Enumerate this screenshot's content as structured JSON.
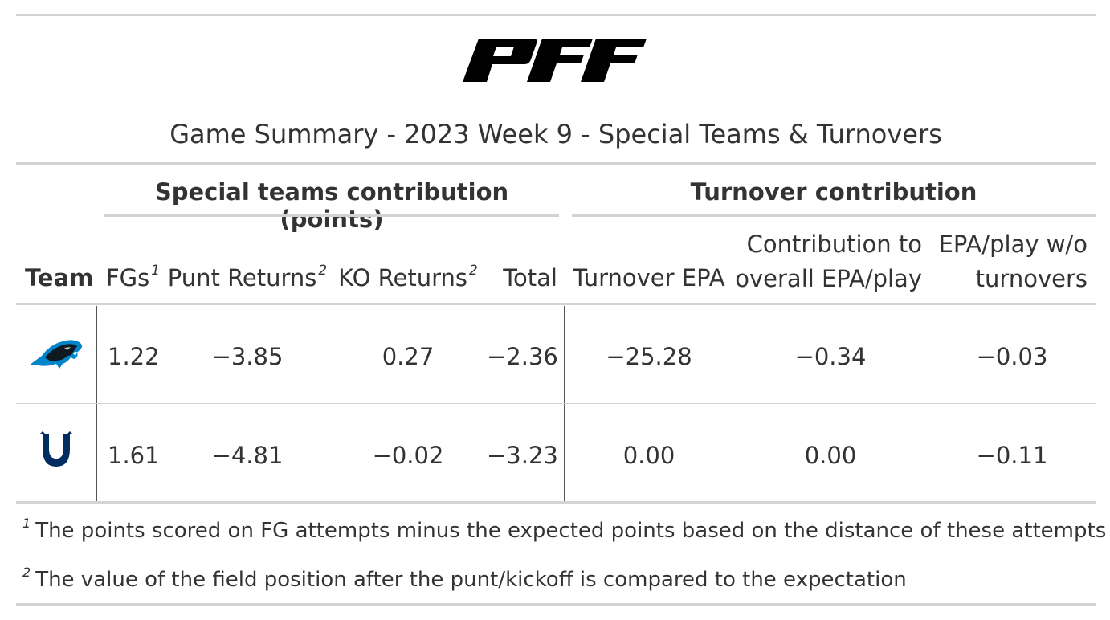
{
  "logo": {
    "text": "PFF",
    "color": "#000000"
  },
  "title": "Game Summary - 2023 Week 9 - Special Teams & Turnovers",
  "spanners": {
    "special_teams": "Special teams contribution (points)",
    "turnover": "Turnover contribution"
  },
  "columns": {
    "team": "Team",
    "fgs": "FGs",
    "fgs_note": "1",
    "punt_returns": "Punt Returns",
    "punt_returns_note": "2",
    "ko_returns": "KO Returns",
    "ko_returns_note": "2",
    "total": "Total",
    "turnover_epa": "Turnover EPA",
    "contribution_line1": "Contribution to",
    "contribution_line2": "overall EPA/play",
    "epa_wo_line1": "EPA/play w/o",
    "epa_wo_line2": "turnovers"
  },
  "rows": [
    {
      "team_logo": "panthers-logo",
      "fgs": "1.22",
      "punt_returns": "−3.85",
      "ko_returns": "0.27",
      "total": "−2.36",
      "turnover_epa": "−25.28",
      "contribution": "−0.34",
      "epa_wo": "−0.03"
    },
    {
      "team_logo": "colts-logo",
      "fgs": "1.61",
      "punt_returns": "−4.81",
      "ko_returns": "−0.02",
      "total": "−3.23",
      "turnover_epa": "0.00",
      "contribution": "0.00",
      "epa_wo": "−0.11"
    }
  ],
  "footnotes": [
    {
      "mark": "1",
      "text": "The points scored on FG attempts minus the expected points based on the distance of these attempts"
    },
    {
      "mark": "2",
      "text": "The value of the field position after the punt/kickoff is compared to the expectation"
    }
  ],
  "colors": {
    "panthers_blue": "#0085CA",
    "colts_blue": "#002C5F",
    "rule": "#d3d3d3"
  }
}
